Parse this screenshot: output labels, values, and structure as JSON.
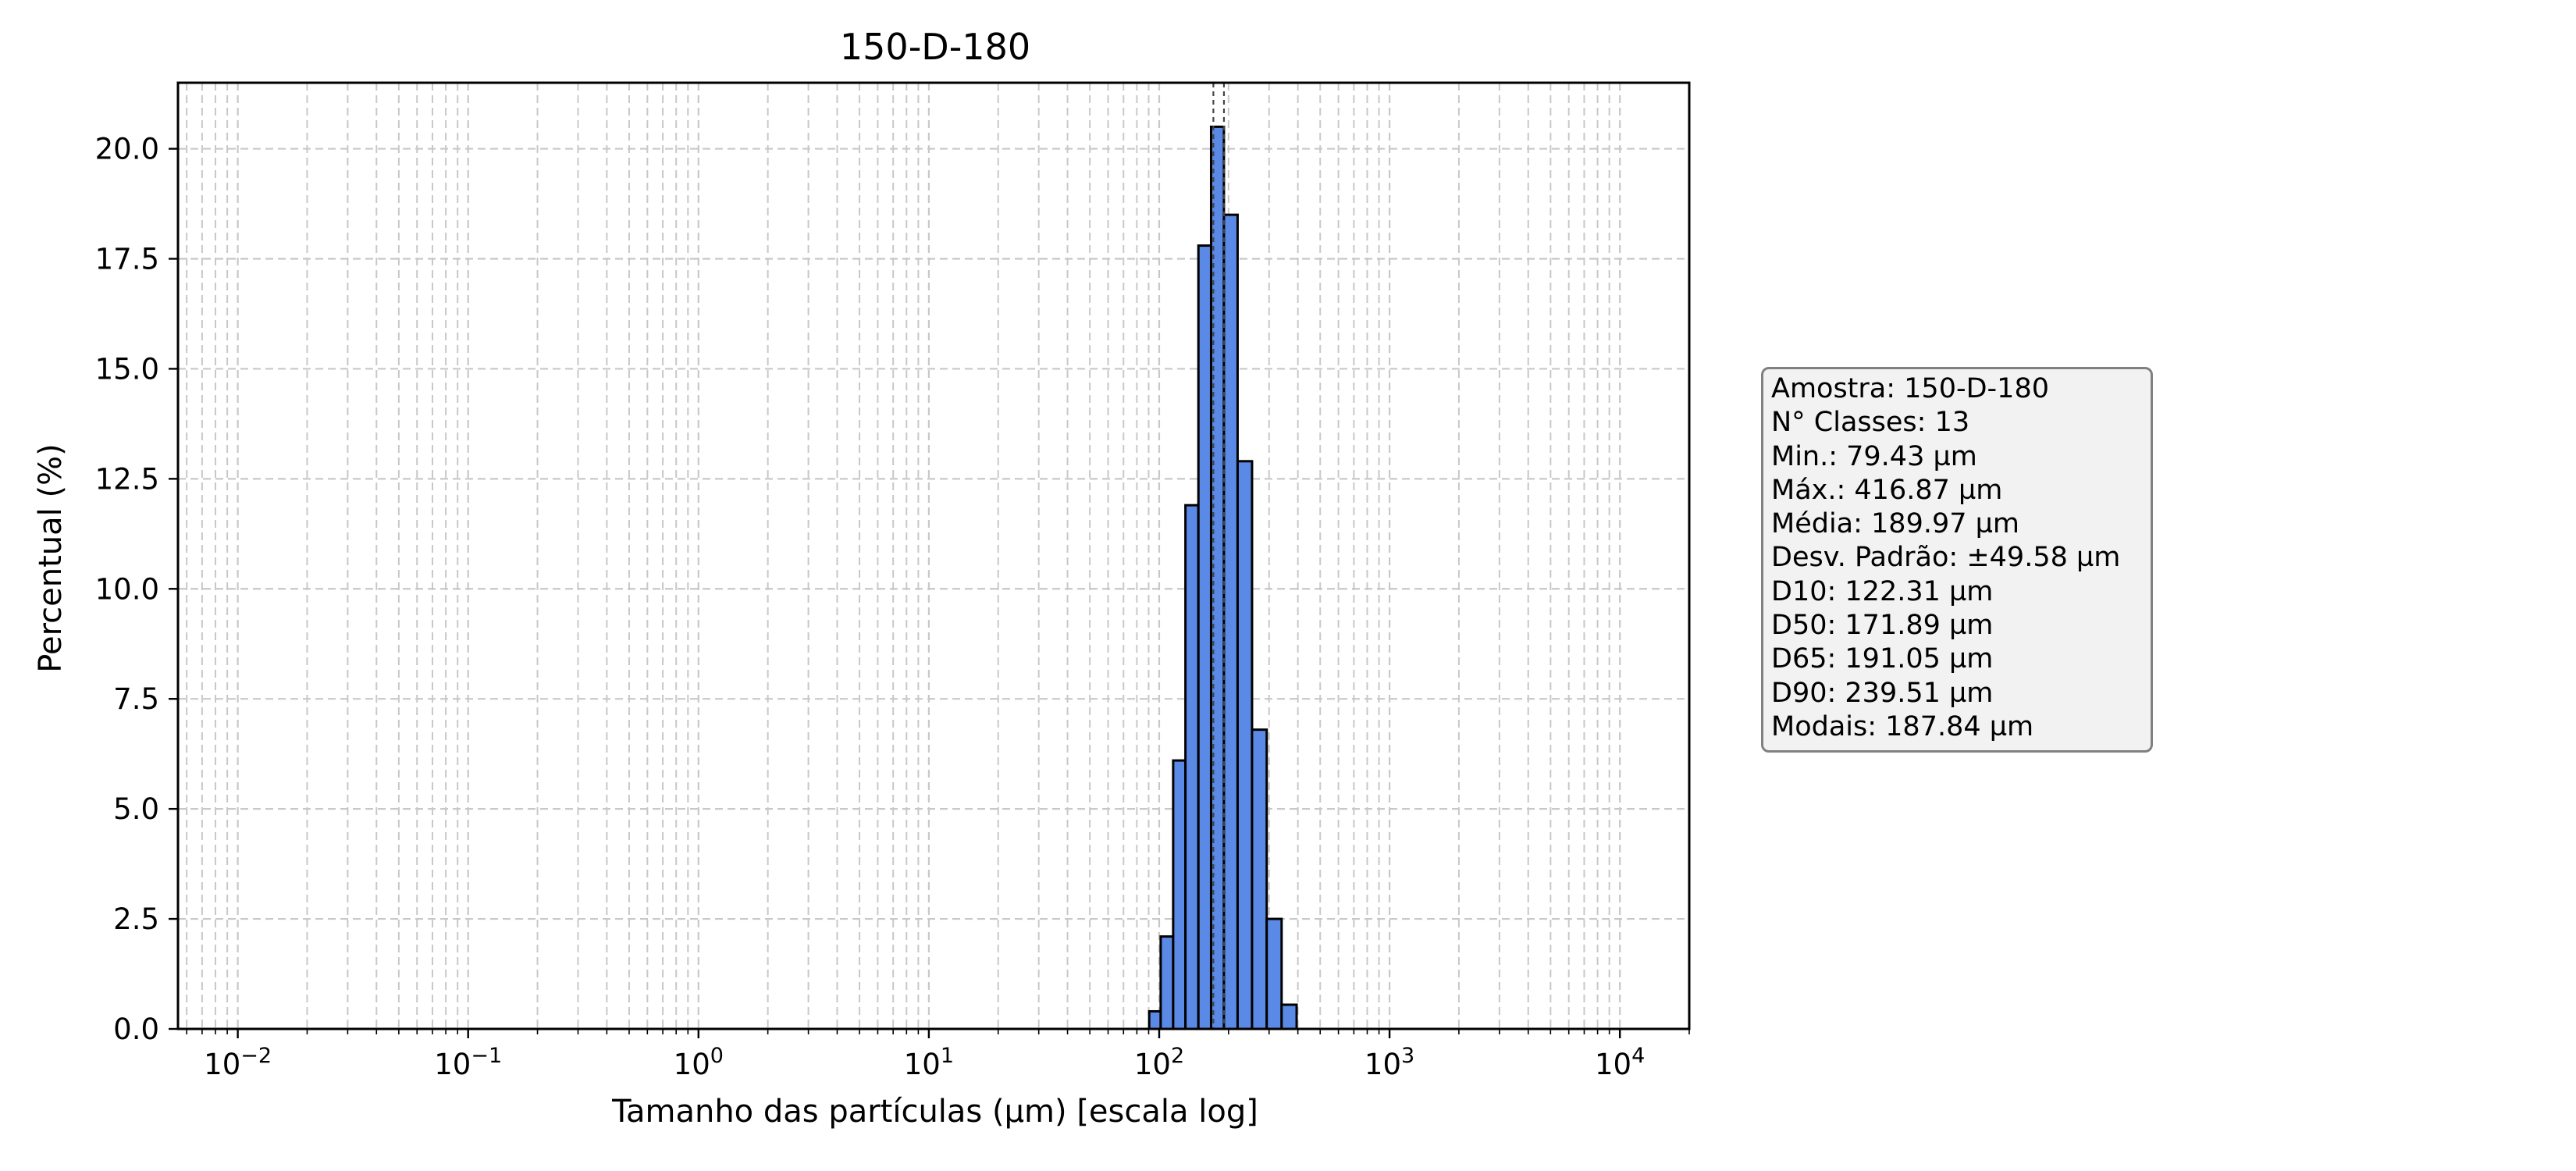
{
  "chart_data": {
    "type": "bar",
    "title": "150-D-180",
    "xlabel": "Tamanho das partículas (µm) [escala log]",
    "ylabel": "Percentual (%)",
    "x_scale": "log",
    "xlim": [
      0.0055,
      20000
    ],
    "ylim": [
      0,
      21.5
    ],
    "grid": true,
    "x_ticks": [
      {
        "value": 0.01,
        "base": "10",
        "exp": "−2"
      },
      {
        "value": 0.1,
        "base": "10",
        "exp": "−1"
      },
      {
        "value": 1,
        "base": "10",
        "exp": "0"
      },
      {
        "value": 10,
        "base": "10",
        "exp": "1"
      },
      {
        "value": 100,
        "base": "10",
        "exp": "2"
      },
      {
        "value": 1000,
        "base": "10",
        "exp": "3"
      },
      {
        "value": 10000,
        "base": "10",
        "exp": "4"
      }
    ],
    "y_ticks": [
      {
        "value": 0,
        "label": "0.0"
      },
      {
        "value": 2.5,
        "label": "2.5"
      },
      {
        "value": 5,
        "label": "5.0"
      },
      {
        "value": 7.5,
        "label": "7.5"
      },
      {
        "value": 10,
        "label": "10.0"
      },
      {
        "value": 12.5,
        "label": "12.5"
      },
      {
        "value": 15,
        "label": "15.0"
      },
      {
        "value": 17.5,
        "label": "17.5"
      },
      {
        "value": 20,
        "label": "20.0"
      }
    ],
    "bins": [
      {
        "left": 79.43,
        "right": 90.5,
        "value": 0.0
      },
      {
        "left": 90.5,
        "right": 101.5,
        "value": 0.4
      },
      {
        "left": 101.5,
        "right": 115.0,
        "value": 2.1
      },
      {
        "left": 115.0,
        "right": 130.0,
        "value": 6.1
      },
      {
        "left": 130.0,
        "right": 148.0,
        "value": 11.9
      },
      {
        "left": 148.0,
        "right": 168.0,
        "value": 17.8
      },
      {
        "left": 168.0,
        "right": 191.0,
        "value": 20.5
      },
      {
        "left": 191.0,
        "right": 219.0,
        "value": 18.5
      },
      {
        "left": 219.0,
        "right": 253.0,
        "value": 12.9
      },
      {
        "left": 253.0,
        "right": 293.0,
        "value": 6.8
      },
      {
        "left": 293.0,
        "right": 340.0,
        "value": 2.5
      },
      {
        "left": 340.0,
        "right": 395.0,
        "value": 0.55
      },
      {
        "left": 395.0,
        "right": 416.87,
        "value": 0.0
      }
    ],
    "vlines": [
      171.89,
      191.05
    ],
    "colors": {
      "bar_fill": "#5a8ae6",
      "bar_edge": "#000000",
      "grid": "#c8c8c8",
      "vline": "#444444"
    }
  },
  "info_box": {
    "lines": [
      "Amostra: 150-D-180",
      "N° Classes: 13",
      "Min.: 79.43 µm",
      "Máx.: 416.87 µm",
      "Média: 189.97 µm",
      "Desv. Padrão: ±49.58 µm",
      "D10: 122.31 µm",
      "D50: 171.89 µm",
      "D65: 191.05 µm",
      "D90: 239.51 µm",
      "Modais: 187.84 µm"
    ]
  }
}
